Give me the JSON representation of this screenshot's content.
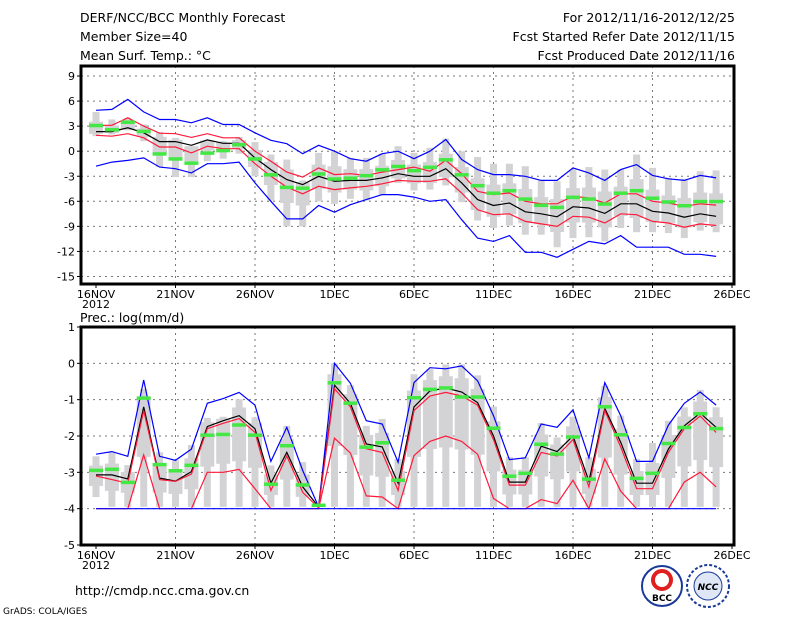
{
  "header": {
    "title": "DERF/NCC/BCC Monthly Forecast",
    "member_size": "Member Size=40",
    "variable1": "Mean Surf. Temp.: °C",
    "for_range": "For 2012/11/16-2012/12/25",
    "fcst_started": "Fcst Started Refer Date 2012/11/15",
    "fcst_produced": "Fcst Produced Date 2012/11/16"
  },
  "footer": {
    "url": "http://cmdp.ncc.cma.gov.cn",
    "grads": "GrADS: COLA/IGES",
    "logo_bcc": "BCC",
    "logo_ncc": "NCC"
  },
  "colors": {
    "mean": "#000000",
    "red": "#ff1a3a",
    "blue": "#0000ff",
    "green": "#44e844",
    "box": "#d3d3d6"
  },
  "chart_data": [
    {
      "type": "line",
      "title": "Mean Surf. Temp.: °C",
      "ylim": [
        -15.9,
        10.2
      ],
      "yticks": [
        9,
        6,
        3,
        0,
        -3,
        -6,
        -9,
        -12,
        -15
      ],
      "xtick_labels": [
        "16NOV",
        "21NOV",
        "26NOV",
        "1DEC",
        "6DEC",
        "11DEC",
        "16DEC",
        "21DEC",
        "26DEC"
      ],
      "year_label": "2012",
      "grid": true,
      "days": 40,
      "series": [
        {
          "name": "ensemble-max",
          "color": "blue",
          "values": [
            4.9,
            5.0,
            6.2,
            4.7,
            3.8,
            3.8,
            3.4,
            4.0,
            3.2,
            3.2,
            2.2,
            1.3,
            0.9,
            -0.3,
            0.7,
            0,
            -0.9,
            -1.2,
            -0.3,
            0,
            -0.9,
            0,
            1.4,
            -1.0,
            -2.2,
            -2.8,
            -2.8,
            -3.0,
            -3.5,
            -3.5,
            -2.0,
            -2.6,
            -3.5,
            -2.2,
            -1.6,
            -2.9,
            -3.3,
            -3.5,
            -2.9,
            -3.2
          ]
        },
        {
          "name": "upper",
          "color": "red",
          "values": [
            3.1,
            3.1,
            4.0,
            3.0,
            2.15,
            2.1,
            1.65,
            2.1,
            1.6,
            1.6,
            0,
            -1.2,
            -2.5,
            -3.1,
            -2.0,
            -2.8,
            -2.7,
            -2.9,
            -2.5,
            -2.2,
            -1.9,
            -2.4,
            -1.1,
            -2.7,
            -4.8,
            -5.2,
            -5.0,
            -6.0,
            -6.3,
            -6.3,
            -5.4,
            -5.6,
            -6.2,
            -5.1,
            -5.1,
            -6.0,
            -6.2,
            -6.6,
            -6.3,
            -6.45
          ]
        },
        {
          "name": "mean",
          "color": "mean",
          "values": [
            2.35,
            2.35,
            2.8,
            2.2,
            1.15,
            1.15,
            0.7,
            1.35,
            0.95,
            0.95,
            -0.8,
            -2.2,
            -3.4,
            -4.0,
            -3.0,
            -3.6,
            -3.5,
            -3.5,
            -3.2,
            -2.7,
            -3.0,
            -3.0,
            -2.1,
            -3.8,
            -5.8,
            -6.5,
            -6.2,
            -7.25,
            -7.5,
            -7.85,
            -6.65,
            -6.8,
            -7.45,
            -6.3,
            -6.3,
            -7.2,
            -7.4,
            -7.9,
            -7.5,
            -7.8
          ]
        },
        {
          "name": "lower",
          "color": "red",
          "values": [
            1.9,
            1.8,
            2.1,
            1.6,
            0.5,
            0.5,
            -0.2,
            0.6,
            0.3,
            0.3,
            -1.5,
            -3.0,
            -4.3,
            -5.1,
            -4.2,
            -4.6,
            -4.4,
            -4.2,
            -3.9,
            -3.5,
            -3.6,
            -3.6,
            -3.3,
            -5.0,
            -7.0,
            -7.6,
            -7.5,
            -8.4,
            -8.7,
            -9.0,
            -7.8,
            -7.9,
            -8.6,
            -7.5,
            -7.6,
            -8.4,
            -8.6,
            -9.1,
            -8.7,
            -8.9
          ]
        },
        {
          "name": "ensemble-min",
          "color": "blue",
          "values": [
            -1.8,
            -1.3,
            -1.1,
            -0.8,
            -1.9,
            -2.1,
            -2.6,
            -1.5,
            -1.5,
            -1.3,
            -3.8,
            -6.0,
            -8.1,
            -8.1,
            -6.5,
            -7.3,
            -6.4,
            -5.8,
            -5.2,
            -5.2,
            -5.5,
            -6.0,
            -5.8,
            -8.2,
            -10.4,
            -10.8,
            -10.1,
            -12.1,
            -12.1,
            -12.7,
            -11.75,
            -10.8,
            -11.1,
            -10.1,
            -11.5,
            -11.5,
            -11.5,
            -12.35,
            -12.35,
            -12.6
          ]
        },
        {
          "name": "marker",
          "color": "green",
          "values": [
            3.1,
            2.6,
            3.5,
            2.4,
            -0.3,
            -0.9,
            -1.4,
            -0.2,
            0.1,
            0.8,
            -0.9,
            -2.8,
            -4.3,
            -4.4,
            -2.7,
            -3.3,
            -3.2,
            -2.9,
            -2.2,
            -1.8,
            -2.3,
            -1.9,
            -1.0,
            -2.8,
            -4.1,
            -5.0,
            -4.7,
            -5.7,
            -6.45,
            -6.7,
            -5.5,
            -5.7,
            -6.3,
            -5.0,
            -4.7,
            -5.6,
            -6.05,
            -6.5,
            -6.0,
            -6.0
          ]
        }
      ],
      "spread": {
        "lo": [
          1.8,
          2.0,
          2.5,
          1.2,
          -1.9,
          -3.1,
          -3.1,
          -1.2,
          -0.9,
          -0.3,
          -3.0,
          -5.9,
          -9.0,
          -9.0,
          -6.0,
          -6.3,
          -5.7,
          -5.9,
          -5.2,
          -3.8,
          -4.7,
          -4.6,
          -4.1,
          -6.1,
          -8.3,
          -9.2,
          -8.9,
          -10.0,
          -10.0,
          -11.5,
          -10.4,
          -10.3,
          -10.8,
          -9.2,
          -9.7,
          -9.7,
          -9.8,
          -10.4,
          -9.5,
          -9.7
        ],
        "hi": [
          4.7,
          3.8,
          4.0,
          3.2,
          2.3,
          1.6,
          0.5,
          1.2,
          1.2,
          1.7,
          1.1,
          -0.4,
          -1.0,
          -3.5,
          -0.2,
          0,
          -0.8,
          -0.8,
          -0.3,
          0.6,
          -0.2,
          0.4,
          1.5,
          0,
          -0.7,
          -1.5,
          -1.5,
          -1.8,
          -3.5,
          -3.6,
          -2.2,
          -1.9,
          -2.2,
          -2.2,
          -0.4,
          -2.0,
          -3.2,
          -3.3,
          -2.4,
          -2.3
        ]
      }
    },
    {
      "type": "line",
      "title": "Prec.: log(mm/d)",
      "ylim": [
        -5,
        1
      ],
      "yticks": [
        1,
        0,
        -1,
        -2,
        -3,
        -4,
        -5
      ],
      "xtick_labels": [
        "16NOV",
        "21NOV",
        "26NOV",
        "1DEC",
        "6DEC",
        "11DEC",
        "16DEC",
        "21DEC",
        "26DEC"
      ],
      "year_label": "2012",
      "grid": true,
      "days": 40,
      "series": [
        {
          "name": "ensemble-max",
          "color": "blue",
          "values": [
            -2.5,
            -2.43,
            -2.56,
            -0.46,
            -2.56,
            -2.67,
            -2.36,
            -1.1,
            -0.97,
            -0.8,
            -1.15,
            -2.7,
            -1.76,
            -2.95,
            -3.95,
            0,
            -0.55,
            -1.58,
            -1.67,
            -2.72,
            -0.53,
            -0.12,
            -0.15,
            -0.07,
            -0.48,
            -1.44,
            -2.65,
            -2.6,
            -1.67,
            -1.76,
            -1.28,
            -2.6,
            -0.53,
            -1.44,
            -2.7,
            -2.7,
            -1.7,
            -1.1,
            -0.79,
            -1.15
          ]
        },
        {
          "name": "mean",
          "color": "mean",
          "values": [
            -3.07,
            -3.07,
            -3.18,
            -1.2,
            -3.16,
            -3.24,
            -2.98,
            -1.74,
            -1.58,
            -1.44,
            -1.8,
            -3.3,
            -2.45,
            -3.4,
            -3.95,
            -0.6,
            -1.1,
            -2.22,
            -2.3,
            -3.3,
            -1.2,
            -0.76,
            -0.68,
            -0.79,
            -1.08,
            -2.0,
            -3.27,
            -3.27,
            -2.28,
            -2.43,
            -2.0,
            -3.24,
            -1.24,
            -2.17,
            -3.3,
            -3.3,
            -2.36,
            -1.72,
            -1.37,
            -1.76
          ]
        },
        {
          "name": "upper",
          "color": "red",
          "values": [
            -3.1,
            -3.2,
            -3.3,
            -1.3,
            -3.2,
            -3.25,
            -3.05,
            -1.8,
            -1.65,
            -1.52,
            -1.9,
            -3.5,
            -2.55,
            -3.55,
            -3.98,
            -0.7,
            -1.2,
            -2.35,
            -2.45,
            -3.5,
            -1.3,
            -0.9,
            -0.8,
            -0.9,
            -1.15,
            -2.1,
            -3.35,
            -3.35,
            -2.45,
            -2.55,
            -2.1,
            -3.4,
            -1.3,
            -2.3,
            -3.45,
            -3.45,
            -2.45,
            -1.8,
            -1.45,
            -1.9
          ]
        },
        {
          "name": "lower",
          "color": "red",
          "values": [
            -4,
            -4,
            -4,
            -2.52,
            -4,
            -4,
            -4,
            -3.0,
            -3.0,
            -2.92,
            -3.45,
            -4,
            -4,
            -4,
            -4,
            -2.06,
            -2.47,
            -3.65,
            -3.68,
            -4,
            -2.54,
            -2.15,
            -2.0,
            -2.15,
            -2.5,
            -3.72,
            -4,
            -4,
            -3.75,
            -3.86,
            -3.22,
            -4,
            -2.63,
            -3.52,
            -4,
            -4,
            -4,
            -3.27,
            -3.0,
            -3.4
          ]
        },
        {
          "name": "ensemble-min",
          "color": "blue",
          "values": [
            -4,
            -4,
            -4,
            -4,
            -4,
            -4,
            -4,
            -4,
            -4,
            -4,
            -4,
            -4,
            -4,
            -4,
            -4,
            -4,
            -4,
            -4,
            -4,
            -4,
            -4,
            -4,
            -4,
            -4,
            -4,
            -4,
            -4,
            -4,
            -4,
            -4,
            -4,
            -4,
            -4,
            -4,
            -4,
            -4,
            -4,
            -4,
            -4,
            -4
          ]
        },
        {
          "name": "marker",
          "color": "green",
          "values": [
            -2.94,
            -2.91,
            -3.27,
            -0.95,
            -2.78,
            -2.95,
            -2.8,
            -1.97,
            -1.95,
            -1.69,
            -1.97,
            -3.32,
            -2.26,
            -3.34,
            -3.9,
            -0.53,
            -1.09,
            -2.3,
            -2.18,
            -3.21,
            -0.94,
            -0.71,
            -0.67,
            -0.92,
            -0.92,
            -1.78,
            -3.1,
            -3.02,
            -2.22,
            -2.49,
            -2.02,
            -3.18,
            -1.19,
            -1.96,
            -3.16,
            -3.02,
            -2.2,
            -1.76,
            -1.38,
            -1.79
          ]
        }
      ],
      "spread": {
        "lo": [
          -3.68,
          -3.95,
          -3.95,
          -3.95,
          -3.95,
          -3.95,
          -3.95,
          -3.95,
          -3.95,
          -3.95,
          -3.95,
          -3.95,
          -3.95,
          -3.95,
          -3.95,
          -3.95,
          -3.95,
          -3.95,
          -3.95,
          -3.95,
          -3.95,
          -3.95,
          -3.95,
          -3.95,
          -3.95,
          -3.95,
          -3.95,
          -3.95,
          -3.95,
          -3.95,
          -3.95,
          -3.95,
          -3.95,
          -3.95,
          -3.95,
          -3.95,
          -3.95,
          -3.95,
          -3.95,
          -3.95
        ],
        "hi": [
          -2.56,
          -2.45,
          -2.8,
          -0.71,
          -2.45,
          -2.67,
          -2.25,
          -1.5,
          -1.47,
          -0.99,
          -1.49,
          -2.81,
          -1.72,
          -2.72,
          -3.86,
          0,
          -0.6,
          -1.72,
          -1.53,
          -2.63,
          -0.3,
          -0.16,
          -0.03,
          -0.03,
          -0.33,
          -1.19,
          -2.58,
          -2.58,
          -1.64,
          -2.04,
          -1.47,
          -2.58,
          -0.62,
          -1.44,
          -2.63,
          -2.19,
          -1.58,
          -1.21,
          -0.73,
          -1.21
        ]
      }
    }
  ]
}
